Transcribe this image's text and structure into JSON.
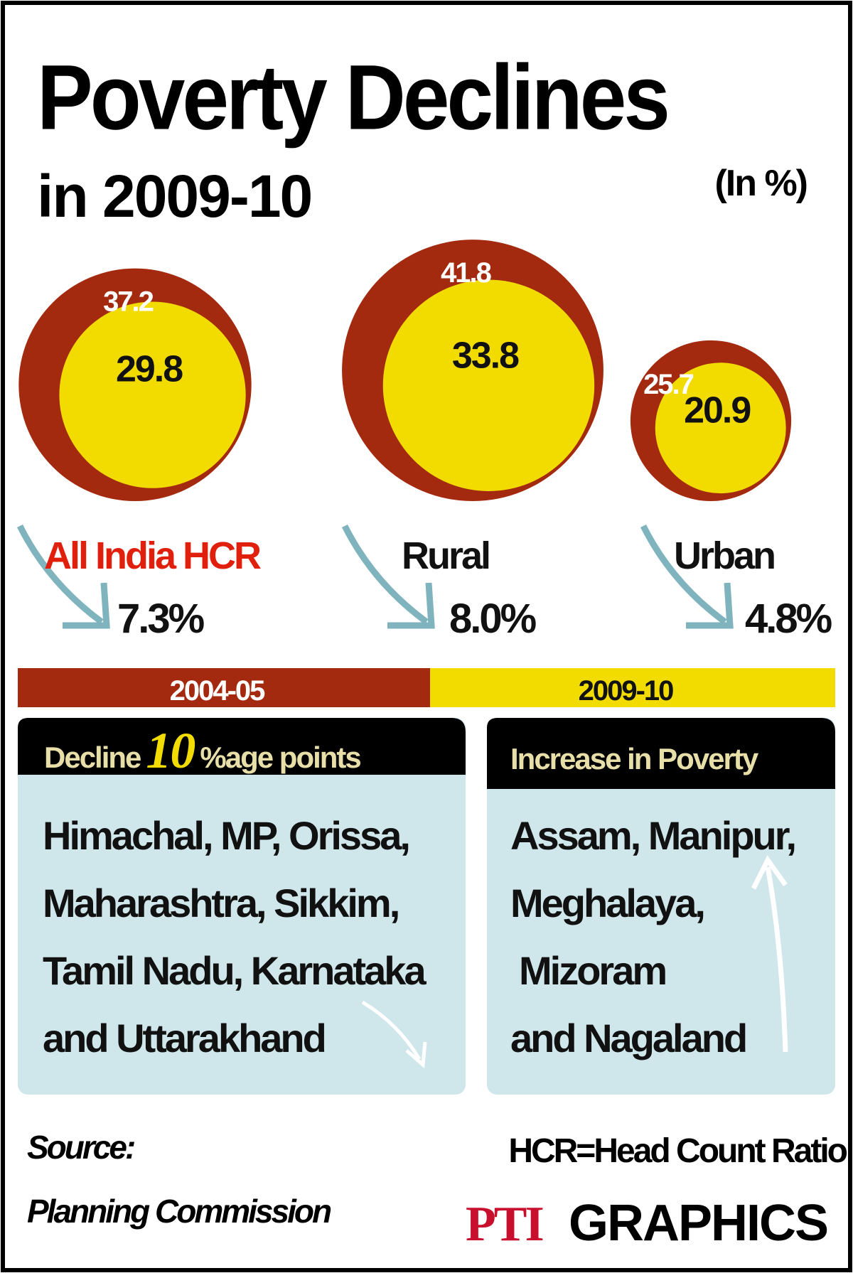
{
  "chart_data": {
    "type": "bubble",
    "title": "Poverty Declines",
    "subtitle": "in 2009-10",
    "unit": "(In %)",
    "categories": [
      "All India HCR",
      "Rural",
      "Urban"
    ],
    "series": [
      {
        "name": "2004-05",
        "color": "#a3290f",
        "values": [
          37.2,
          41.8,
          25.7
        ]
      },
      {
        "name": "2009-10",
        "color": "#f2dc00",
        "values": [
          29.8,
          33.8,
          20.9
        ]
      }
    ],
    "declines": {
      "values": [
        7.3,
        8.0,
        4.8
      ],
      "value_labels": [
        "7.3%",
        "8.0%",
        "4.8%"
      ]
    }
  },
  "decline_box": {
    "title": [
      "Decline",
      "10",
      "%age points"
    ],
    "lines": [
      "Himachal, MP, Orissa,",
      "Maharashtra, Sikkim,",
      "Tamil Nadu, Karnataka",
      "and Uttarakhand"
    ]
  },
  "increase_box": {
    "title": "Increase in Poverty",
    "lines": [
      "Assam, Manipur,",
      "Meghalaya,",
      "Mizoram",
      "and Nagaland"
    ]
  },
  "footer": {
    "source_label": "Source:",
    "source": "Planning Commission",
    "note": "HCR=Head Count Ratio",
    "logo": "PTI",
    "logo_text": "GRAPHICS"
  }
}
